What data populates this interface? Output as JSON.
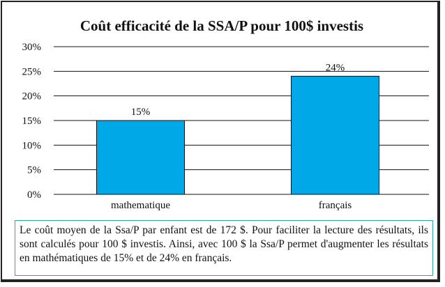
{
  "chart_data": {
    "type": "bar",
    "title": "Coût efficacité de la SSA/P pour 100$ investis",
    "categories": [
      "mathematique",
      "français"
    ],
    "values": [
      15,
      24
    ],
    "data_labels": [
      "15%",
      "24%"
    ],
    "ylim": [
      0,
      30
    ],
    "yticks": [
      0,
      5,
      10,
      15,
      20,
      25,
      30
    ],
    "ytick_labels": [
      "0%",
      "5%",
      "10%",
      "15%",
      "20%",
      "25%",
      "30%"
    ],
    "xlabel": "",
    "ylabel": "",
    "grid": true,
    "bar_color": "#00a8e8",
    "legend": "none"
  },
  "note": {
    "text": "Le coût moyen de la Ssa/P par enfant est de 172 $. Pour faciliter la lecture des résultats, ils sont calculés pour 100 $ investis. Ainsi, avec 100 $ la Ssa/P permet d'augmenter les résultats en mathématiques de 15% et de 24% en français."
  }
}
